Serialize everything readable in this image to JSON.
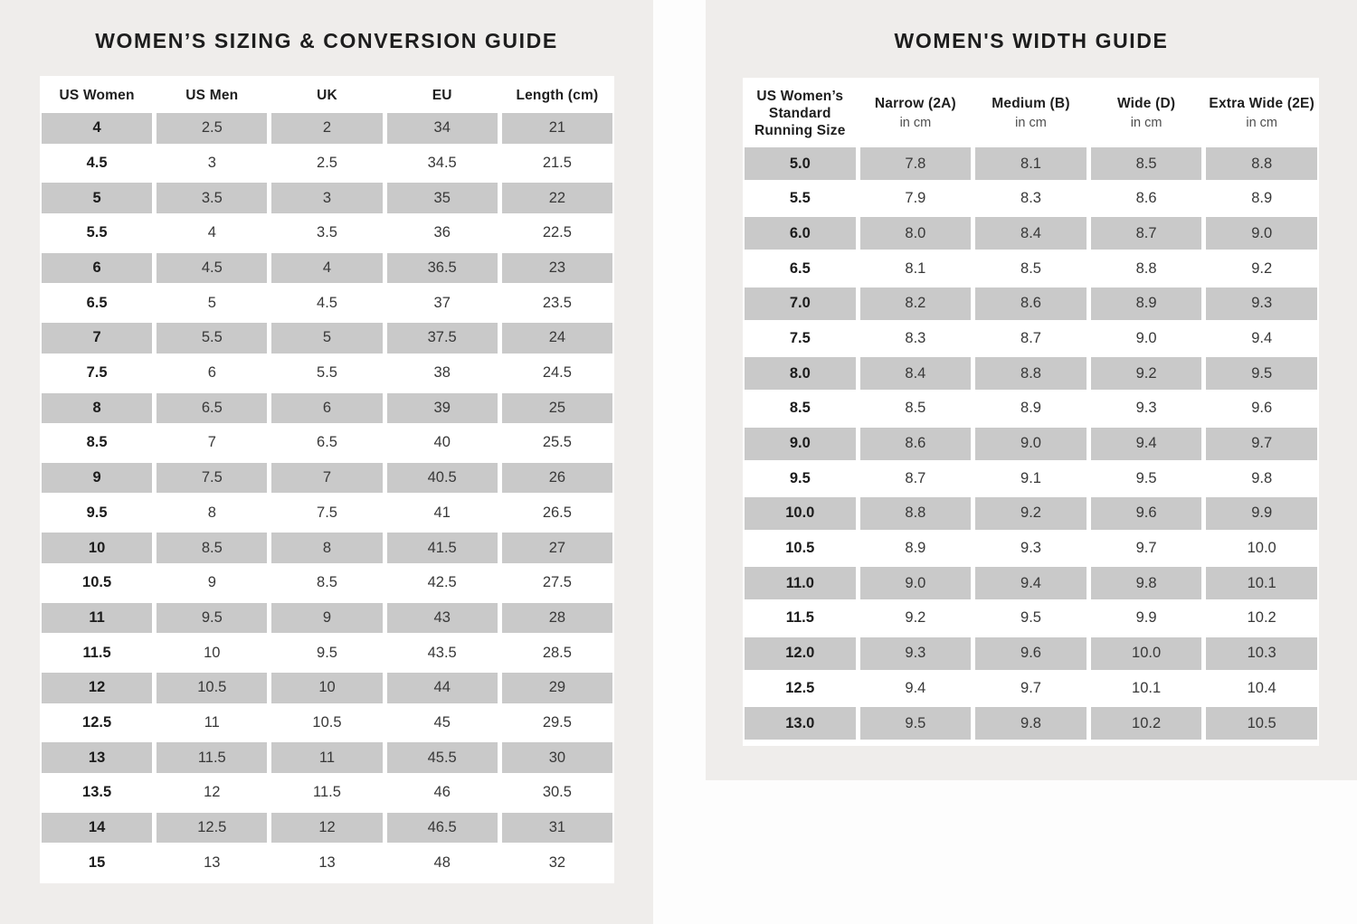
{
  "page": {
    "background": "#fdfdfd",
    "panel_background": "#efedeb",
    "row_highlight_gray": "#c9c9c9",
    "text_dark": "#1d1d1d"
  },
  "sizing_guide": {
    "title": "WOMEN’S SIZING & CONVERSION GUIDE",
    "columns": [
      "US Women",
      "US Men",
      "UK",
      "EU",
      "Length (cm)"
    ],
    "rows": [
      [
        "4",
        "2.5",
        "2",
        "34",
        "21"
      ],
      [
        "4.5",
        "3",
        "2.5",
        "34.5",
        "21.5"
      ],
      [
        "5",
        "3.5",
        "3",
        "35",
        "22"
      ],
      [
        "5.5",
        "4",
        "3.5",
        "36",
        "22.5"
      ],
      [
        "6",
        "4.5",
        "4",
        "36.5",
        "23"
      ],
      [
        "6.5",
        "5",
        "4.5",
        "37",
        "23.5"
      ],
      [
        "7",
        "5.5",
        "5",
        "37.5",
        "24"
      ],
      [
        "7.5",
        "6",
        "5.5",
        "38",
        "24.5"
      ],
      [
        "8",
        "6.5",
        "6",
        "39",
        "25"
      ],
      [
        "8.5",
        "7",
        "6.5",
        "40",
        "25.5"
      ],
      [
        "9",
        "7.5",
        "7",
        "40.5",
        "26"
      ],
      [
        "9.5",
        "8",
        "7.5",
        "41",
        "26.5"
      ],
      [
        "10",
        "8.5",
        "8",
        "41.5",
        "27"
      ],
      [
        "10.5",
        "9",
        "8.5",
        "42.5",
        "27.5"
      ],
      [
        "11",
        "9.5",
        "9",
        "43",
        "28"
      ],
      [
        "11.5",
        "10",
        "9.5",
        "43.5",
        "28.5"
      ],
      [
        "12",
        "10.5",
        "10",
        "44",
        "29"
      ],
      [
        "12.5",
        "11",
        "10.5",
        "45",
        "29.5"
      ],
      [
        "13",
        "11.5",
        "11",
        "45.5",
        "30"
      ],
      [
        "13.5",
        "12",
        "11.5",
        "46",
        "30.5"
      ],
      [
        "14",
        "12.5",
        "12",
        "46.5",
        "31"
      ],
      [
        "15",
        "13",
        "13",
        "48",
        "32"
      ]
    ]
  },
  "width_guide": {
    "title": "WOMEN'S WIDTH GUIDE",
    "columns": [
      {
        "label": "US Women’s Standard Running Size",
        "sub": ""
      },
      {
        "label": "Narrow (2A)",
        "sub": "in cm"
      },
      {
        "label": "Medium (B)",
        "sub": "in cm"
      },
      {
        "label": "Wide (D)",
        "sub": "in cm"
      },
      {
        "label": "Extra Wide (2E)",
        "sub": "in cm"
      }
    ],
    "rows": [
      [
        "5.0",
        "7.8",
        "8.1",
        "8.5",
        "8.8"
      ],
      [
        "5.5",
        "7.9",
        "8.3",
        "8.6",
        "8.9"
      ],
      [
        "6.0",
        "8.0",
        "8.4",
        "8.7",
        "9.0"
      ],
      [
        "6.5",
        "8.1",
        "8.5",
        "8.8",
        "9.2"
      ],
      [
        "7.0",
        "8.2",
        "8.6",
        "8.9",
        "9.3"
      ],
      [
        "7.5",
        "8.3",
        "8.7",
        "9.0",
        "9.4"
      ],
      [
        "8.0",
        "8.4",
        "8.8",
        "9.2",
        "9.5"
      ],
      [
        "8.5",
        "8.5",
        "8.9",
        "9.3",
        "9.6"
      ],
      [
        "9.0",
        "8.6",
        "9.0",
        "9.4",
        "9.7"
      ],
      [
        "9.5",
        "8.7",
        "9.1",
        "9.5",
        "9.8"
      ],
      [
        "10.0",
        "8.8",
        "9.2",
        "9.6",
        "9.9"
      ],
      [
        "10.5",
        "8.9",
        "9.3",
        "9.7",
        "10.0"
      ],
      [
        "11.0",
        "9.0",
        "9.4",
        "9.8",
        "10.1"
      ],
      [
        "11.5",
        "9.2",
        "9.5",
        "9.9",
        "10.2"
      ],
      [
        "12.0",
        "9.3",
        "9.6",
        "10.0",
        "10.3"
      ],
      [
        "12.5",
        "9.4",
        "9.7",
        "10.1",
        "10.4"
      ],
      [
        "13.0",
        "9.5",
        "9.8",
        "10.2",
        "10.5"
      ]
    ]
  }
}
